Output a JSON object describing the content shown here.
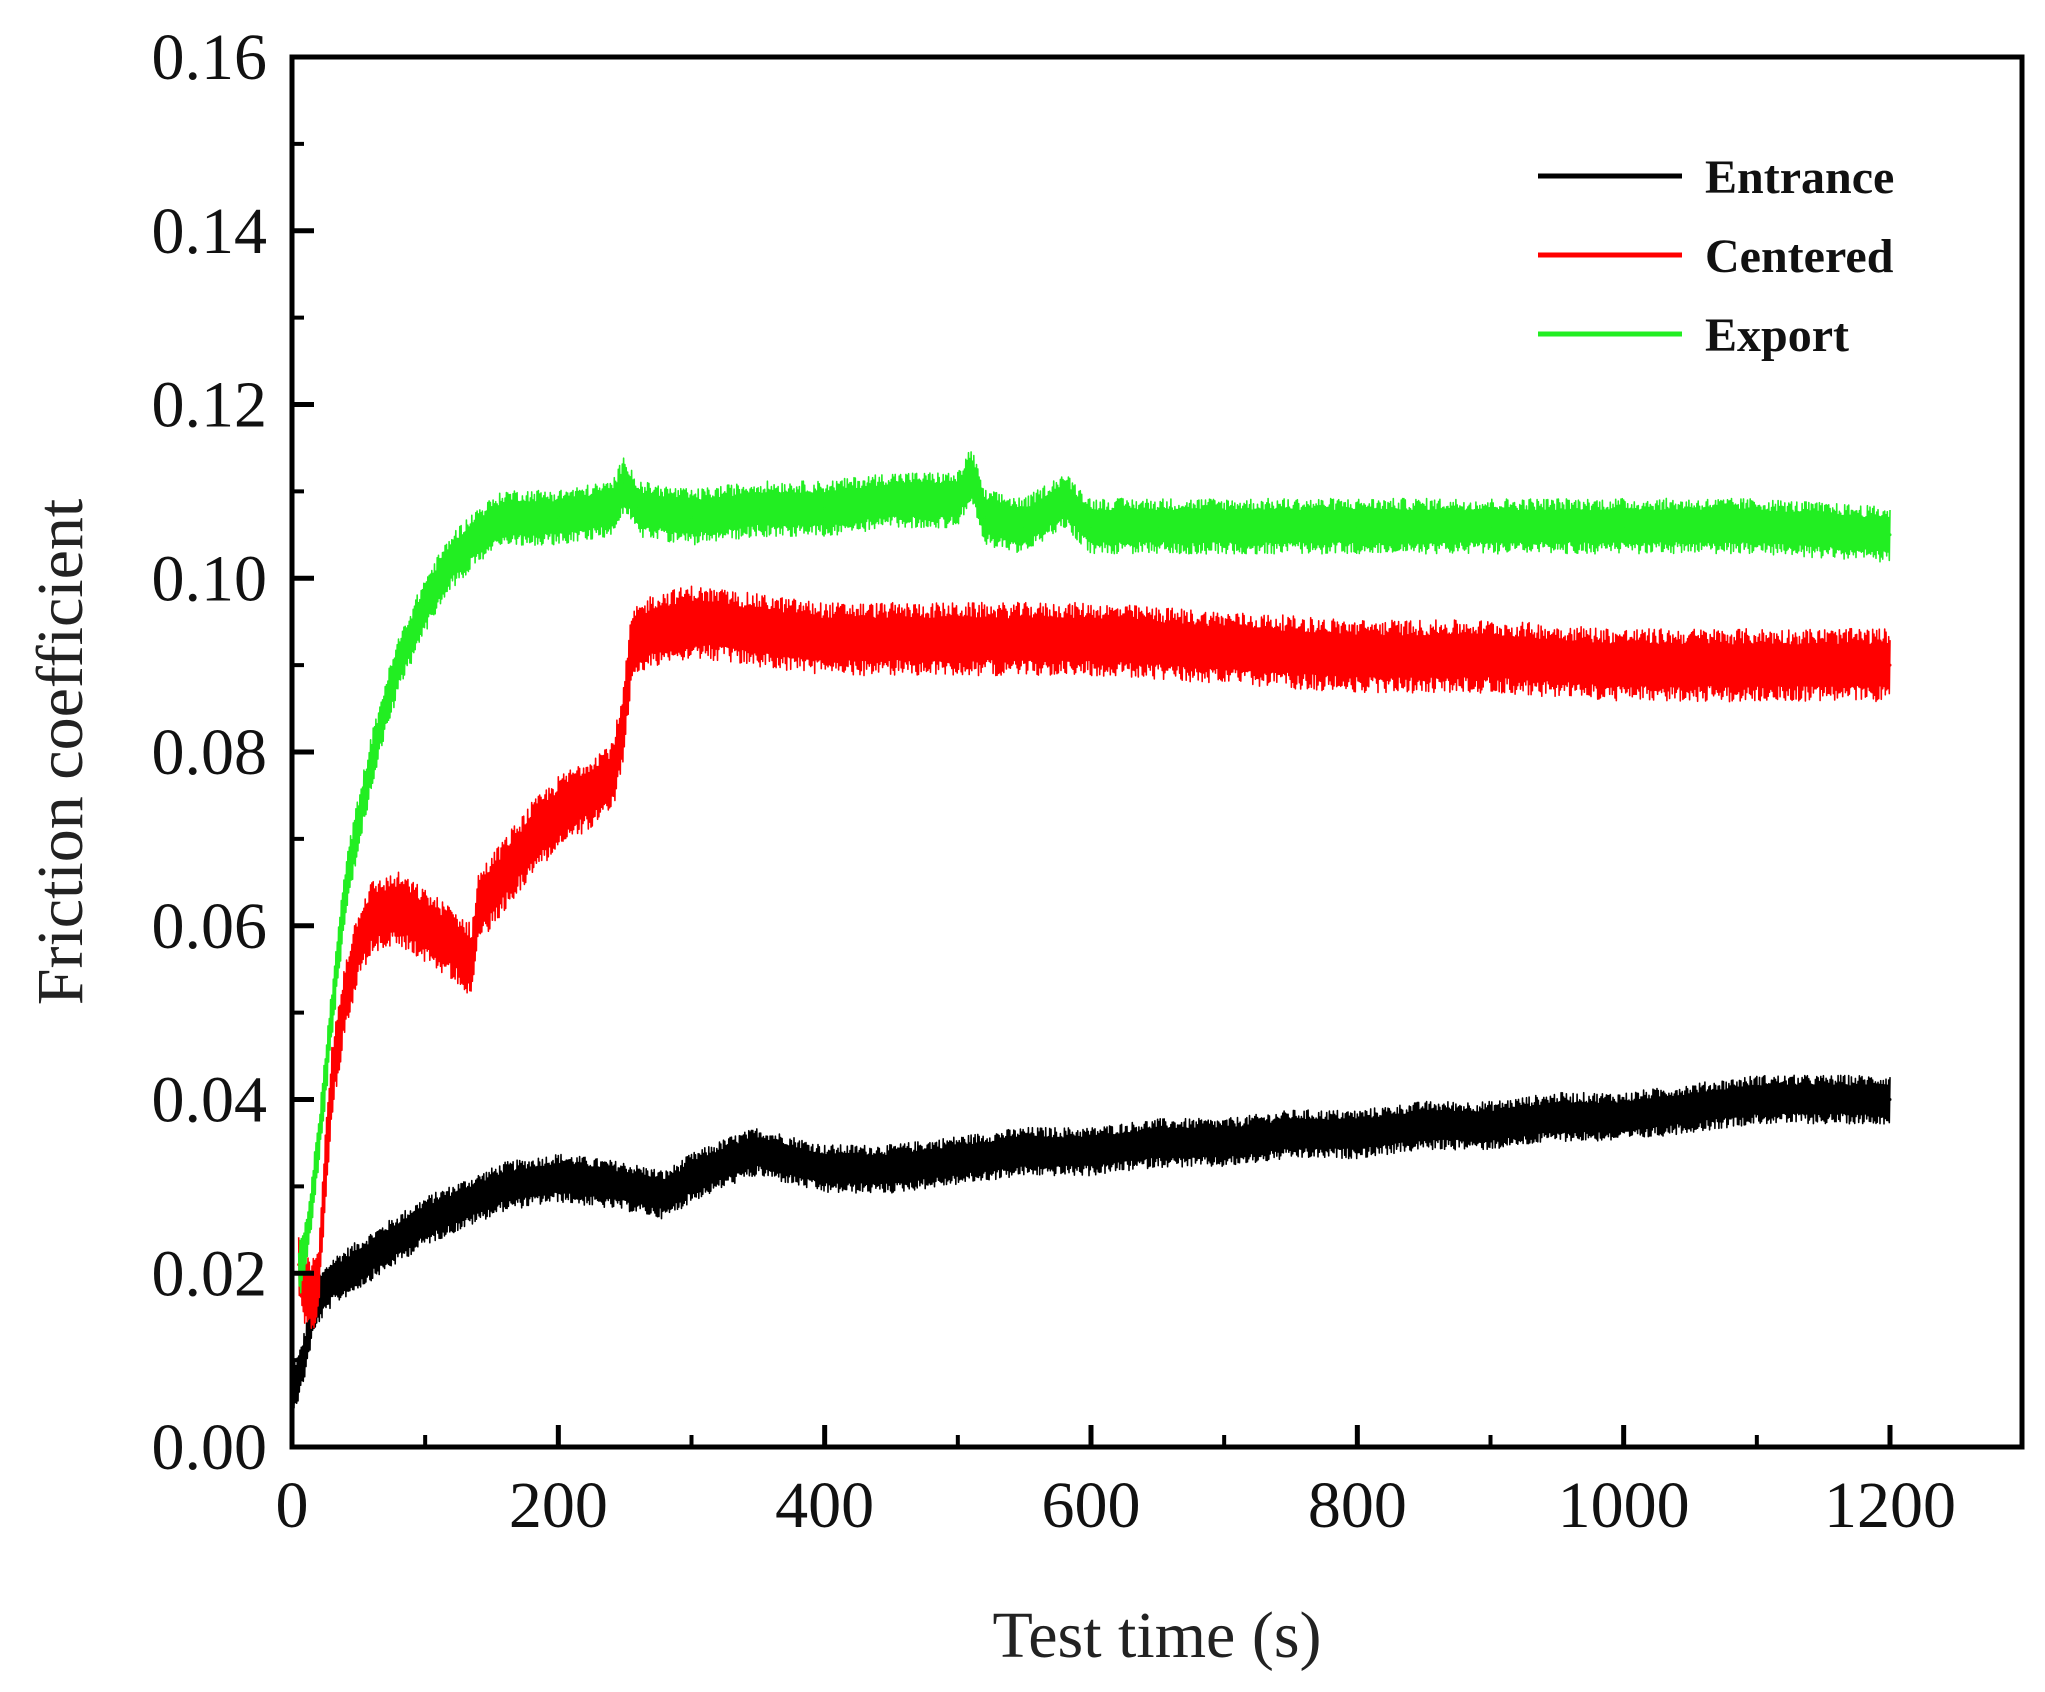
{
  "chart_data": {
    "type": "line",
    "title": "",
    "xlabel": "Test time (s)",
    "ylabel": "Friction coefficient",
    "xlim": [
      0,
      1300
    ],
    "ylim": [
      0.0,
      0.16
    ],
    "x_ticks": [
      0,
      200,
      400,
      600,
      800,
      1000,
      1200
    ],
    "x_tick_labels": [
      "0",
      "200",
      "400",
      "600",
      "800",
      "1000",
      "1200"
    ],
    "y_ticks": [
      0.0,
      0.02,
      0.04,
      0.06,
      0.08,
      0.1,
      0.12,
      0.14,
      0.16
    ],
    "y_tick_labels": [
      "0.00",
      "0.02",
      "0.04",
      "0.06",
      "0.08",
      "0.10",
      "0.12",
      "0.14",
      "0.16"
    ],
    "grid": false,
    "legend_position": "top-right",
    "series": [
      {
        "name": "Entrance",
        "color": "#000000",
        "noise": 0.0028,
        "x": [
          0,
          5,
          10,
          15,
          20,
          30,
          40,
          60,
          80,
          100,
          130,
          160,
          200,
          250,
          280,
          300,
          330,
          350,
          400,
          450,
          500,
          550,
          600,
          650,
          700,
          750,
          800,
          850,
          900,
          950,
          1000,
          1050,
          1100,
          1150,
          1200
        ],
        "values": [
          0.007,
          0.008,
          0.011,
          0.015,
          0.017,
          0.019,
          0.02,
          0.022,
          0.024,
          0.026,
          0.028,
          0.03,
          0.031,
          0.03,
          0.029,
          0.031,
          0.033,
          0.034,
          0.032,
          0.032,
          0.033,
          0.034,
          0.034,
          0.035,
          0.035,
          0.036,
          0.036,
          0.037,
          0.037,
          0.038,
          0.038,
          0.039,
          0.04,
          0.04,
          0.04
        ]
      },
      {
        "name": "Centered",
        "color": "#ff0000",
        "noise": 0.0042,
        "x": [
          5,
          10,
          15,
          20,
          25,
          30,
          40,
          50,
          60,
          80,
          100,
          120,
          135,
          140,
          160,
          180,
          200,
          220,
          240,
          248,
          255,
          270,
          300,
          350,
          400,
          500,
          600,
          700,
          800,
          900,
          1000,
          1050,
          1100,
          1150,
          1200
        ],
        "values": [
          0.021,
          0.018,
          0.017,
          0.02,
          0.032,
          0.042,
          0.052,
          0.058,
          0.061,
          0.062,
          0.06,
          0.058,
          0.056,
          0.062,
          0.066,
          0.07,
          0.073,
          0.075,
          0.077,
          0.082,
          0.092,
          0.094,
          0.095,
          0.094,
          0.093,
          0.093,
          0.093,
          0.092,
          0.091,
          0.091,
          0.09,
          0.09,
          0.09,
          0.09,
          0.09
        ]
      },
      {
        "name": "Export",
        "color": "#22ee22",
        "noise": 0.0032,
        "x": [
          5,
          10,
          15,
          20,
          30,
          40,
          50,
          60,
          70,
          80,
          100,
          120,
          140,
          150,
          160,
          200,
          240,
          250,
          260,
          300,
          350,
          400,
          450,
          500,
          510,
          520,
          550,
          580,
          600,
          650,
          700,
          800,
          900,
          1000,
          1100,
          1200
        ],
        "values": [
          0.02,
          0.023,
          0.028,
          0.035,
          0.05,
          0.064,
          0.072,
          0.079,
          0.085,
          0.09,
          0.097,
          0.102,
          0.105,
          0.106,
          0.107,
          0.107,
          0.108,
          0.111,
          0.108,
          0.107,
          0.108,
          0.108,
          0.109,
          0.109,
          0.112,
          0.107,
          0.106,
          0.109,
          0.106,
          0.106,
          0.106,
          0.106,
          0.106,
          0.106,
          0.106,
          0.105
        ]
      }
    ]
  }
}
